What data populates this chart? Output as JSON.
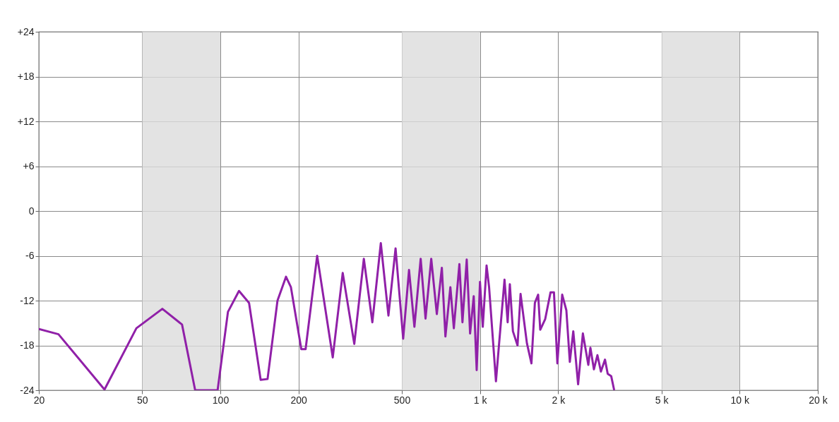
{
  "chart_data": {
    "type": "line",
    "log": "x",
    "grid": true,
    "xlim": [
      20,
      20000
    ],
    "ylim": [
      -24,
      24
    ],
    "xticks": [
      20,
      50,
      100,
      200,
      500,
      {
        "value": 1000,
        "label": "1 k"
      },
      {
        "value": 2000,
        "label": "2 k"
      },
      {
        "value": 5000,
        "label": "5 k"
      },
      {
        "value": 10000,
        "label": "10 k"
      },
      {
        "value": 20000,
        "label": "20 k"
      }
    ],
    "yticks": [
      {
        "value": 24,
        "label": "+24"
      },
      {
        "value": 18,
        "label": "+18"
      },
      {
        "value": 12,
        "label": "+12"
      },
      {
        "value": 6,
        "label": "+6"
      },
      0,
      -6,
      -12,
      -18,
      -24
    ],
    "bands": [
      {
        "axis": "x",
        "from": 50,
        "to": 100,
        "color": "#dcdcdc"
      },
      {
        "axis": "x",
        "from": 500,
        "to": 1000,
        "color": "#dcdcdc"
      },
      {
        "axis": "x",
        "from": 5000,
        "to": 10000,
        "color": "#dcdcdc"
      }
    ],
    "series": [
      {
        "color": "#9020a8",
        "x": [
          20,
          23.8,
          35.8,
          47.5,
          59.8,
          71.2,
          80,
          97.6,
          107,
          118,
          129,
          143,
          152,
          166,
          179,
          187,
          205,
          213,
          236,
          271,
          296,
          328,
          357,
          385,
          415,
          444,
          473,
          506,
          533,
          559,
          591,
          617,
          649,
          682,
          713,
          736,
          769,
          793,
          833,
          856,
          889,
          916,
          946,
          971,
          1000,
          1025,
          1060,
          1084,
          1152,
          1185,
          1243,
          1278,
          1303,
          1339,
          1395,
          1433,
          1516,
          1578,
          1627,
          1675,
          1706,
          1782,
          1869,
          1927,
          1986,
          2073,
          2151,
          2218,
          2287,
          2387,
          2490,
          2613,
          2662,
          2746,
          2833,
          2922,
          3030,
          3104,
          3201,
          3283
        ],
        "values": [
          -15.8,
          -16.5,
          -23.9,
          -15.7,
          -13.1,
          -15.2,
          -24,
          -24,
          -13.5,
          -10.7,
          -12.3,
          -22.6,
          -22.5,
          -12.0,
          -8.8,
          -10.2,
          -18.5,
          -18.5,
          -6.0,
          -19.6,
          -8.3,
          -17.8,
          -6.4,
          -14.9,
          -4.3,
          -14.0,
          -5.0,
          -17.1,
          -7.9,
          -15.5,
          -6.4,
          -14.4,
          -6.4,
          -13.8,
          -7.6,
          -16.8,
          -10.2,
          -15.7,
          -7.1,
          -14.9,
          -6.5,
          -16.4,
          -11.4,
          -21.3,
          -9.5,
          -15.5,
          -7.3,
          -10.2,
          -22.8,
          -17.7,
          -9.2,
          -14.9,
          -9.8,
          -16.1,
          -18.0,
          -11.1,
          -17.7,
          -20.4,
          -12.3,
          -11.2,
          -15.9,
          -14.5,
          -10.9,
          -10.9,
          -20.4,
          -11.2,
          -13.3,
          -20.2,
          -16.1,
          -23.2,
          -16.4,
          -20.6,
          -18.3,
          -21.2,
          -19.3,
          -21.5,
          -19.9,
          -21.8,
          -22.1,
          -23.9
        ]
      }
    ]
  }
}
